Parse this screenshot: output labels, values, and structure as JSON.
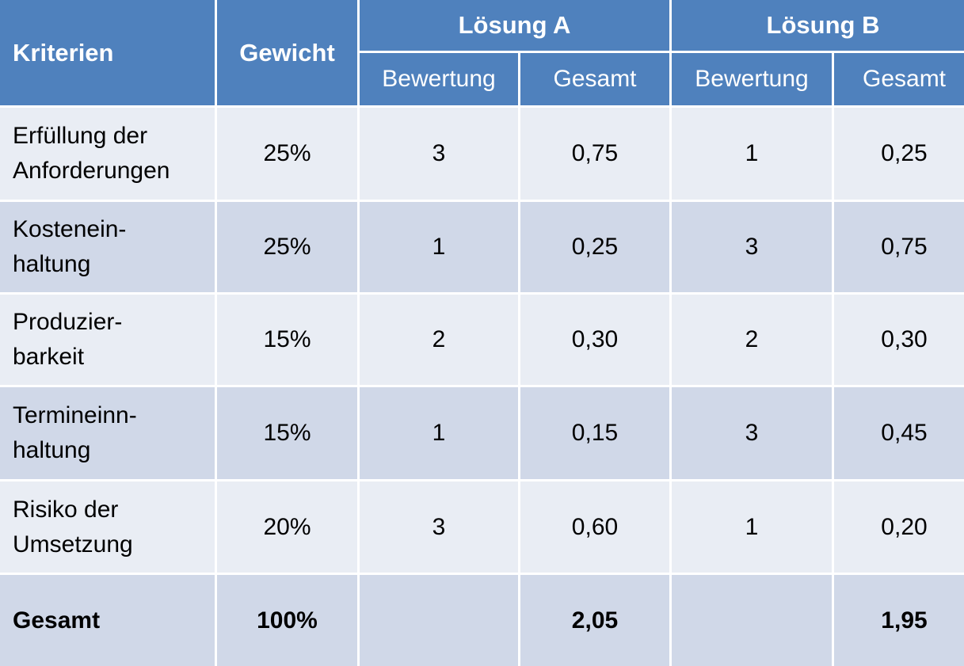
{
  "header": {
    "kriterien": "Kriterien",
    "gewicht": "Gewicht",
    "loesung_a": "Lösung A",
    "loesung_b": "Lösung B",
    "bewertung": "Bewertung",
    "gesamt": "Gesamt"
  },
  "rows": [
    {
      "kriterium": "Erfüllung der\nAnforderungen",
      "gewicht": "25%",
      "a_bewertung": "3",
      "a_gesamt": "0,75",
      "b_bewertung": "1",
      "b_gesamt": "0,25"
    },
    {
      "kriterium": "Kostenein-\nhaltung",
      "gewicht": "25%",
      "a_bewertung": "1",
      "a_gesamt": "0,25",
      "b_bewertung": "3",
      "b_gesamt": "0,75"
    },
    {
      "kriterium": "Produzier-\nbarkeit",
      "gewicht": "15%",
      "a_bewertung": "2",
      "a_gesamt": "0,30",
      "b_bewertung": "2",
      "b_gesamt": "0,30"
    },
    {
      "kriterium": "Termineinn-\nhaltung",
      "gewicht": "15%",
      "a_bewertung": "1",
      "a_gesamt": "0,15",
      "b_bewertung": "3",
      "b_gesamt": "0,45"
    },
    {
      "kriterium": "Risiko der\nUmsetzung",
      "gewicht": "20%",
      "a_bewertung": "3",
      "a_gesamt": "0,60",
      "b_bewertung": "1",
      "b_gesamt": "0,20"
    }
  ],
  "total": {
    "label": "Gesamt",
    "gewicht": "100%",
    "a_bewertung": "",
    "a_gesamt": "2,05",
    "b_bewertung": "",
    "b_gesamt": "1,95"
  }
}
